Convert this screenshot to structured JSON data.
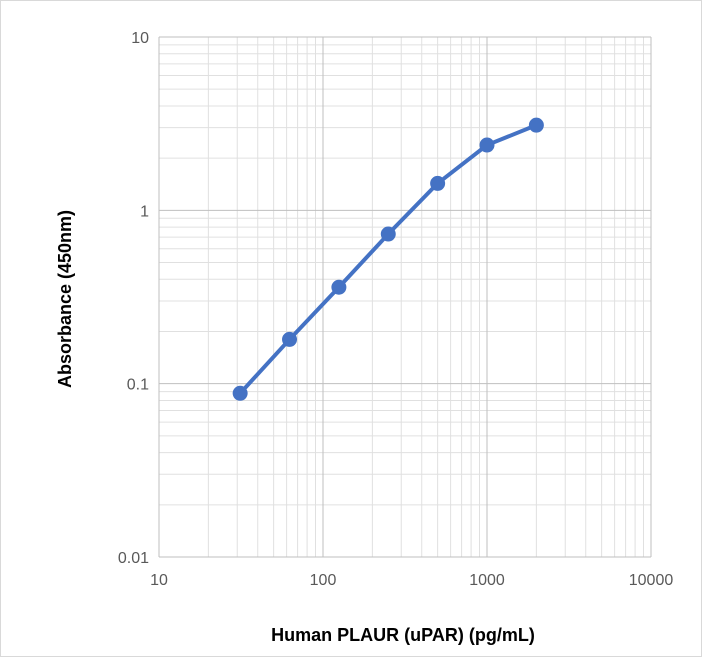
{
  "chart_data": {
    "type": "line",
    "title": "",
    "xlabel": "Human PLAUR (uPAR) (pg/mL)",
    "ylabel": "Absorbance (450nm)",
    "x_scale": "log",
    "y_scale": "log",
    "xlim": [
      10,
      10000
    ],
    "ylim": [
      0.01,
      10
    ],
    "x_ticks": [
      "10",
      "100",
      "1000",
      "10000"
    ],
    "y_ticks": [
      "0.01",
      "0.1",
      "1",
      "10"
    ],
    "grid": true,
    "legend": "none",
    "series": [
      {
        "color": "#4472c4",
        "x": [
          31.25,
          62.5,
          125,
          250,
          500,
          1000,
          2000
        ],
        "y": [
          0.088,
          0.18,
          0.36,
          0.73,
          1.43,
          2.38,
          3.1
        ]
      }
    ]
  }
}
